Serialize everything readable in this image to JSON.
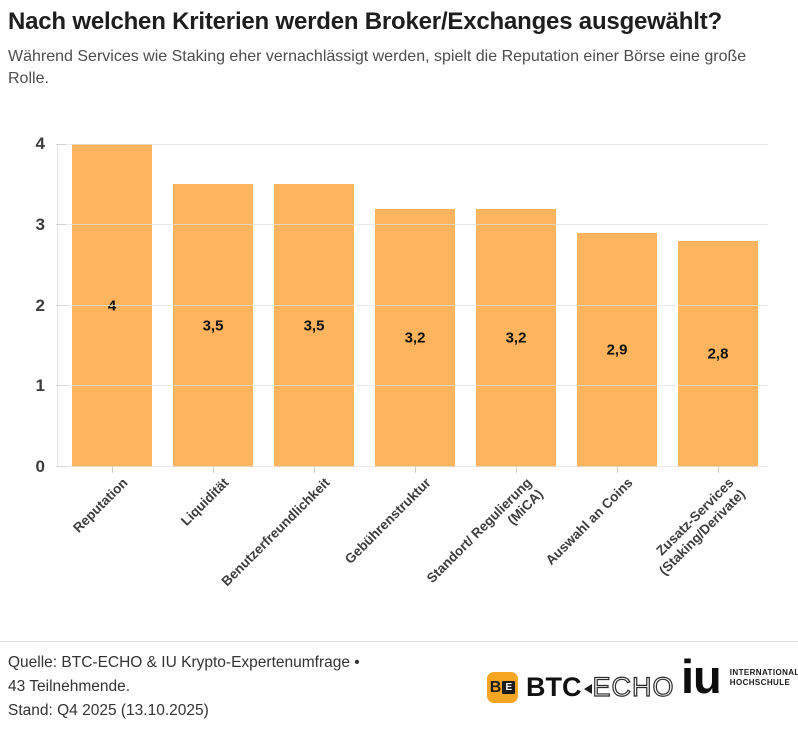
{
  "header": {
    "title": "Nach welchen Kriterien werden Broker/Exchanges ausgewählt?",
    "subtitle": "Während Services wie Staking eher vernachlässigt werden, spielt die Reputation einer Börse eine große Rolle."
  },
  "chart_data": {
    "type": "bar",
    "title": "Nach welchen Kriterien werden Broker/Exchanges ausgewählt?",
    "categories": [
      "Reputation",
      "Liquidität",
      "Benutzerfreundlichkeit",
      "Gebührenstruktur",
      "Standort/ Regulierung (MiCA)",
      "Auswahl an Coins",
      "Zusatz-Services (Staking/Derivate)"
    ],
    "category_lines": [
      [
        "Reputation"
      ],
      [
        "Liquidität"
      ],
      [
        "Benutzerfreundlichkeit"
      ],
      [
        "Gebührenstruktur"
      ],
      [
        "Standort/ Regulierung",
        "(MiCA)"
      ],
      [
        "Auswahl an Coins"
      ],
      [
        "Zusatz-Services",
        "(Staking/Derivate)"
      ]
    ],
    "values": [
      4,
      3.5,
      3.5,
      3.2,
      3.2,
      2.9,
      2.8
    ],
    "value_labels": [
      "4",
      "3,5",
      "3,5",
      "3,2",
      "3,2",
      "2,9",
      "2,8"
    ],
    "xlabel": "",
    "ylabel": "",
    "ylim": [
      0,
      4
    ],
    "yticks": [
      0,
      1,
      2,
      3,
      4
    ],
    "grid": true,
    "legend": "none",
    "bar_color": "#FCB45F"
  },
  "style": {
    "bar_color": "#FCB45F",
    "badge_orange": "#F6A623"
  },
  "footer": {
    "source_line1": "Quelle: BTC-ECHO & IU Krypto-Expertenumfrage •",
    "source_line2": "43 Teilnehmende.",
    "source_line3": "Stand: Q4 2025 (13.10.2025)",
    "btc_echo_logo": {
      "badge_b": "B",
      "badge_e": "E",
      "wordmark_bold": "BTC",
      "wordmark_outline": "ECHO"
    },
    "iu_logo": {
      "wordmark": "iu",
      "line1": "INTERNATIONALE",
      "line2": "HOCHSCHULE"
    }
  }
}
